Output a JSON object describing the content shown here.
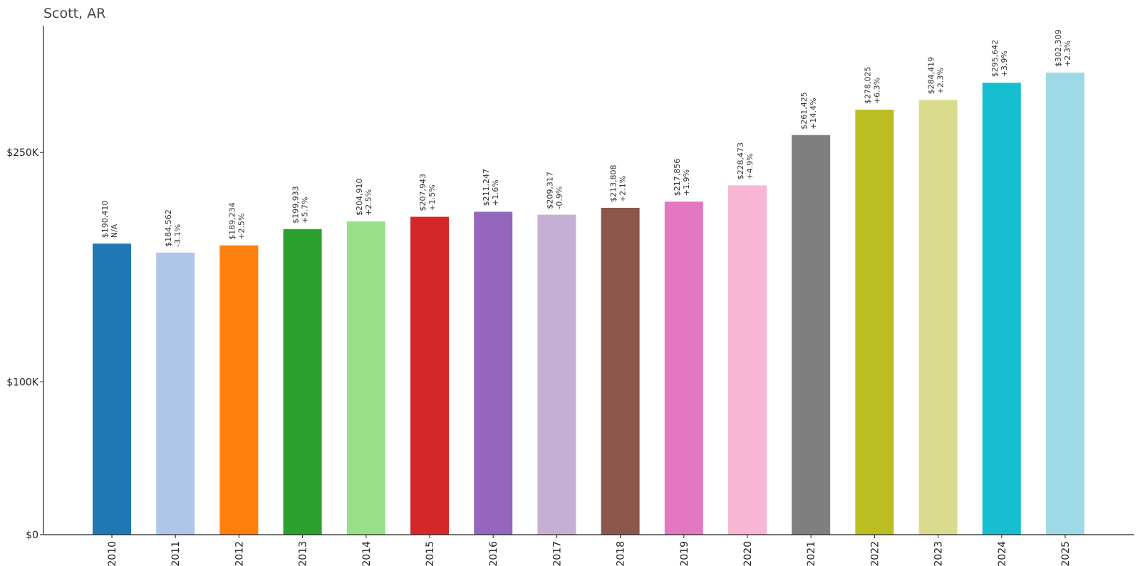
{
  "chart_data": {
    "type": "bar",
    "title": "Scott, AR",
    "xlabel": "",
    "ylabel": "",
    "categories": [
      "2010",
      "2011",
      "2012",
      "2013",
      "2014",
      "2015",
      "2016",
      "2017",
      "2018",
      "2019",
      "2020",
      "2021",
      "2022",
      "2023",
      "2024",
      "2025"
    ],
    "values": [
      190410,
      184562,
      189234,
      199933,
      204910,
      207943,
      211247,
      209317,
      213808,
      217856,
      228473,
      261425,
      278025,
      284419,
      295642,
      302309
    ],
    "value_labels": [
      "$190,410",
      "$184,562",
      "$189,234",
      "$199,933",
      "$204,910",
      "$207,943",
      "$211,247",
      "$209,317",
      "$213,808",
      "$217,856",
      "$228,473",
      "$261,425",
      "$278,025",
      "$284,419",
      "$295,642",
      "$302,309"
    ],
    "change_labels": [
      "N/A",
      "-3.1%",
      "+2.5%",
      "+5.7%",
      "+2.5%",
      "+1.5%",
      "+1.6%",
      "-0.9%",
      "+2.1%",
      "+1.9%",
      "+4.9%",
      "+14.4%",
      "+6.3%",
      "+2.3%",
      "+3.9%",
      "+2.3%"
    ],
    "colors": [
      "#1f77b4",
      "#aec7e8",
      "#ff7f0e",
      "#2ca02c",
      "#98df8a",
      "#d62728",
      "#9467bd",
      "#c5b0d5",
      "#8c564b",
      "#e377c2",
      "#f7b6d2",
      "#7f7f7f",
      "#bcbd22",
      "#dbdb8d",
      "#17becf",
      "#9edae5"
    ],
    "y_ticks": [
      0,
      100000,
      250000
    ],
    "y_tick_labels": [
      "$0",
      "$100K",
      "$250K"
    ],
    "ylim": [
      0,
      333000
    ],
    "grid": false,
    "legend": "none"
  }
}
